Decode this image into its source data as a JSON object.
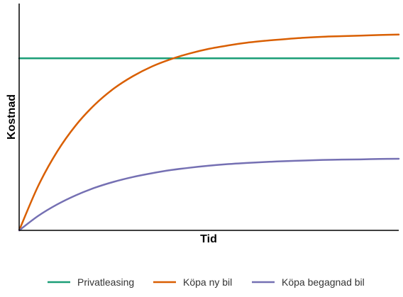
{
  "chart_data": {
    "type": "line",
    "title": "",
    "xlabel": "Tid",
    "ylabel": "Kostnad",
    "x": [
      0,
      0.05,
      0.1,
      0.15,
      0.2,
      0.25,
      0.3,
      0.35,
      0.4,
      0.45,
      0.5,
      0.55,
      0.6,
      0.65,
      0.7,
      0.75,
      0.8,
      0.85,
      0.9,
      0.95,
      1
    ],
    "xlim": [
      0,
      1
    ],
    "ylim": [
      0,
      1
    ],
    "grid": false,
    "legend_position": "bottom",
    "series": [
      {
        "name": "Privatleasing",
        "color": "#1b9e77",
        "values": [
          0.87,
          0.87,
          0.87,
          0.87,
          0.87,
          0.87,
          0.87,
          0.87,
          0.87,
          0.87,
          0.87,
          0.87,
          0.87,
          0.87,
          0.87,
          0.87,
          0.87,
          0.87,
          0.87,
          0.87,
          0.87
        ]
      },
      {
        "name": "Köpa ny bil",
        "color": "#d95f02",
        "values": [
          0.0,
          0.224,
          0.398,
          0.533,
          0.637,
          0.718,
          0.78,
          0.829,
          0.866,
          0.895,
          0.918,
          0.935,
          0.949,
          0.959,
          0.967,
          0.974,
          0.979,
          0.982,
          0.985,
          0.988,
          0.99
        ]
      },
      {
        "name": "Köpa begagnad bil",
        "color": "#7570b3",
        "values": [
          0.0,
          0.073,
          0.131,
          0.178,
          0.216,
          0.246,
          0.27,
          0.289,
          0.305,
          0.317,
          0.327,
          0.335,
          0.341,
          0.346,
          0.35,
          0.353,
          0.356,
          0.358,
          0.359,
          0.361,
          0.362
        ]
      }
    ]
  },
  "colors": {
    "axis": "#000000",
    "background": "#ffffff"
  }
}
